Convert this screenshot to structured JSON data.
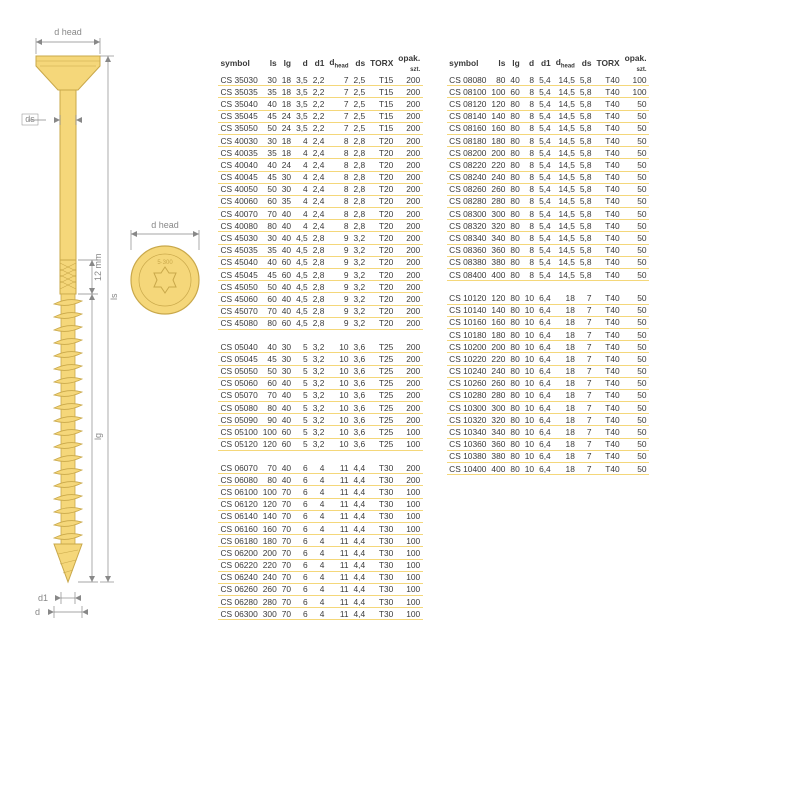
{
  "colors": {
    "screw_fill": "#f5d77a",
    "screw_stroke": "#c9a84a",
    "dim_line": "#888888",
    "dim_text": "#666666",
    "row_line": "#f4d77a",
    "text": "#3a3a3a"
  },
  "headers": [
    "symbol",
    "ls",
    "lg",
    "d",
    "d1",
    "d_head",
    "ds",
    "TORX",
    "opak_szt"
  ],
  "header_labels": {
    "symbol": "symbol",
    "ls": "ls",
    "lg": "lg",
    "d": "d",
    "d1": "d1",
    "d_head": "d head",
    "ds": "ds",
    "TORX": "TORX",
    "opak_szt": "opak. szt."
  },
  "diagram_labels": {
    "d_head": "d head",
    "ds": "ds",
    "d1": "d1",
    "d": "d",
    "ls": "ls",
    "lg": "lg",
    "twelve_mm": "12 mm",
    "head_text": "5·300"
  },
  "blocks": [
    [
      [
        "CS 35030",
        30,
        18,
        "3,5",
        "2,2",
        7,
        "2,5",
        "T15",
        200
      ],
      [
        "CS 35035",
        35,
        18,
        "3,5",
        "2,2",
        7,
        "2,5",
        "T15",
        200
      ],
      [
        "CS 35040",
        40,
        18,
        "3,5",
        "2,2",
        7,
        "2,5",
        "T15",
        200
      ],
      [
        "CS 35045",
        45,
        24,
        "3,5",
        "2,2",
        7,
        "2,5",
        "T15",
        200
      ],
      [
        "CS 35050",
        50,
        24,
        "3,5",
        "2,2",
        7,
        "2,5",
        "T15",
        200
      ],
      [
        "CS 40030",
        30,
        18,
        "4",
        "2,4",
        8,
        "2,8",
        "T20",
        200
      ],
      [
        "CS 40035",
        35,
        18,
        "4",
        "2,4",
        8,
        "2,8",
        "T20",
        200
      ],
      [
        "CS 40040",
        40,
        24,
        "4",
        "2,4",
        8,
        "2,8",
        "T20",
        200
      ],
      [
        "CS 40045",
        45,
        30,
        "4",
        "2,4",
        8,
        "2,8",
        "T20",
        200
      ],
      [
        "CS 40050",
        50,
        30,
        "4",
        "2,4",
        8,
        "2,8",
        "T20",
        200
      ],
      [
        "CS 40060",
        60,
        35,
        "4",
        "2,4",
        8,
        "2,8",
        "T20",
        200
      ],
      [
        "CS 40070",
        70,
        40,
        "4",
        "2,4",
        8,
        "2,8",
        "T20",
        200
      ],
      [
        "CS 40080",
        80,
        40,
        "4",
        "2,4",
        8,
        "2,8",
        "T20",
        200
      ],
      [
        "CS 45030",
        30,
        40,
        "4,5",
        "2,8",
        9,
        "3,2",
        "T20",
        200
      ],
      [
        "CS 45035",
        35,
        40,
        "4,5",
        "2,8",
        9,
        "3,2",
        "T20",
        200
      ],
      [
        "CS 45040",
        40,
        60,
        "4,5",
        "2,8",
        9,
        "3,2",
        "T20",
        200
      ],
      [
        "CS 45045",
        45,
        60,
        "4,5",
        "2,8",
        9,
        "3,2",
        "T20",
        200
      ],
      [
        "CS 45050",
        50,
        40,
        "4,5",
        "2,8",
        9,
        "3,2",
        "T20",
        200
      ],
      [
        "CS 45060",
        60,
        40,
        "4,5",
        "2,8",
        9,
        "3,2",
        "T20",
        200
      ],
      [
        "CS 45070",
        70,
        40,
        "4,5",
        "2,8",
        9,
        "3,2",
        "T20",
        200
      ],
      [
        "CS 45080",
        80,
        60,
        "4,5",
        "2,8",
        9,
        "3,2",
        "T20",
        200
      ]
    ],
    [
      [
        "CS 05040",
        40,
        30,
        "5",
        "3,2",
        10,
        "3,6",
        "T25",
        200
      ],
      [
        "CS 05045",
        45,
        30,
        "5",
        "3,2",
        10,
        "3,6",
        "T25",
        200
      ],
      [
        "CS 05050",
        50,
        30,
        "5",
        "3,2",
        10,
        "3,6",
        "T25",
        200
      ],
      [
        "CS 05060",
        60,
        40,
        "5",
        "3,2",
        10,
        "3,6",
        "T25",
        200
      ],
      [
        "CS 05070",
        70,
        40,
        "5",
        "3,2",
        10,
        "3,6",
        "T25",
        200
      ],
      [
        "CS 05080",
        80,
        40,
        "5",
        "3,2",
        10,
        "3,6",
        "T25",
        200
      ],
      [
        "CS 05090",
        90,
        40,
        "5",
        "3,2",
        10,
        "3,6",
        "T25",
        200
      ],
      [
        "CS 05100",
        100,
        60,
        "5",
        "3,2",
        10,
        "3,6",
        "T25",
        100
      ],
      [
        "CS 05120",
        120,
        60,
        "5",
        "3,2",
        10,
        "3,6",
        "T25",
        100
      ]
    ],
    [
      [
        "CS 06070",
        70,
        40,
        "6",
        "4",
        11,
        "4,4",
        "T30",
        200
      ],
      [
        "CS 06080",
        80,
        40,
        "6",
        "4",
        11,
        "4,4",
        "T30",
        200
      ],
      [
        "CS 06100",
        100,
        70,
        "6",
        "4",
        11,
        "4,4",
        "T30",
        100
      ],
      [
        "CS 06120",
        120,
        70,
        "6",
        "4",
        11,
        "4,4",
        "T30",
        100
      ],
      [
        "CS 06140",
        140,
        70,
        "6",
        "4",
        11,
        "4,4",
        "T30",
        100
      ],
      [
        "CS 06160",
        160,
        70,
        "6",
        "4",
        11,
        "4,4",
        "T30",
        100
      ],
      [
        "CS 06180",
        180,
        70,
        "6",
        "4",
        11,
        "4,4",
        "T30",
        100
      ],
      [
        "CS 06200",
        200,
        70,
        "6",
        "4",
        11,
        "4,4",
        "T30",
        100
      ],
      [
        "CS 06220",
        220,
        70,
        "6",
        "4",
        11,
        "4,4",
        "T30",
        100
      ],
      [
        "CS 06240",
        240,
        70,
        "6",
        "4",
        11,
        "4,4",
        "T30",
        100
      ],
      [
        "CS 06260",
        260,
        70,
        "6",
        "4",
        11,
        "4,4",
        "T30",
        100
      ],
      [
        "CS 06280",
        280,
        70,
        "6",
        "4",
        11,
        "4,4",
        "T30",
        100
      ],
      [
        "CS 06300",
        300,
        70,
        "6",
        "4",
        11,
        "4,4",
        "T30",
        100
      ]
    ],
    [
      [
        "CS 08080",
        80,
        40,
        "8",
        "5,4",
        "14,5",
        "5,8",
        "T40",
        100
      ],
      [
        "CS 08100",
        100,
        60,
        "8",
        "5,4",
        "14,5",
        "5,8",
        "T40",
        100
      ],
      [
        "CS 08120",
        120,
        80,
        "8",
        "5,4",
        "14,5",
        "5,8",
        "T40",
        50
      ],
      [
        "CS 08140",
        140,
        80,
        "8",
        "5,4",
        "14,5",
        "5,8",
        "T40",
        50
      ],
      [
        "CS 08160",
        160,
        80,
        "8",
        "5,4",
        "14,5",
        "5,8",
        "T40",
        50
      ],
      [
        "CS 08180",
        180,
        80,
        "8",
        "5,4",
        "14,5",
        "5,8",
        "T40",
        50
      ],
      [
        "CS 08200",
        200,
        80,
        "8",
        "5,4",
        "14,5",
        "5,8",
        "T40",
        50
      ],
      [
        "CS 08220",
        220,
        80,
        "8",
        "5,4",
        "14,5",
        "5,8",
        "T40",
        50
      ],
      [
        "CS 08240",
        240,
        80,
        "8",
        "5,4",
        "14,5",
        "5,8",
        "T40",
        50
      ],
      [
        "CS 08260",
        260,
        80,
        "8",
        "5,4",
        "14,5",
        "5,8",
        "T40",
        50
      ],
      [
        "CS 08280",
        280,
        80,
        "8",
        "5,4",
        "14,5",
        "5,8",
        "T40",
        50
      ],
      [
        "CS 08300",
        300,
        80,
        "8",
        "5,4",
        "14,5",
        "5,8",
        "T40",
        50
      ],
      [
        "CS 08320",
        320,
        80,
        "8",
        "5,4",
        "14,5",
        "5,8",
        "T40",
        50
      ],
      [
        "CS 08340",
        340,
        80,
        "8",
        "5,4",
        "14,5",
        "5,8",
        "T40",
        50
      ],
      [
        "CS 08360",
        360,
        80,
        "8",
        "5,4",
        "14,5",
        "5,8",
        "T40",
        50
      ],
      [
        "CS 08380",
        380,
        80,
        "8",
        "5,4",
        "14,5",
        "5,8",
        "T40",
        50
      ],
      [
        "CS 08400",
        400,
        80,
        "8",
        "5,4",
        "14,5",
        "5,8",
        "T40",
        50
      ]
    ],
    [
      [
        "CS 10120",
        120,
        80,
        "10",
        "6,4",
        18,
        7,
        "T40",
        50
      ],
      [
        "CS 10140",
        140,
        80,
        "10",
        "6,4",
        18,
        7,
        "T40",
        50
      ],
      [
        "CS 10160",
        160,
        80,
        "10",
        "6,4",
        18,
        7,
        "T40",
        50
      ],
      [
        "CS 10180",
        180,
        80,
        "10",
        "6,4",
        18,
        7,
        "T40",
        50
      ],
      [
        "CS 10200",
        200,
        80,
        "10",
        "6,4",
        18,
        7,
        "T40",
        50
      ],
      [
        "CS 10220",
        220,
        80,
        "10",
        "6,4",
        18,
        7,
        "T40",
        50
      ],
      [
        "CS 10240",
        240,
        80,
        "10",
        "6,4",
        18,
        7,
        "T40",
        50
      ],
      [
        "CS 10260",
        260,
        80,
        "10",
        "6,4",
        18,
        7,
        "T40",
        50
      ],
      [
        "CS 10280",
        280,
        80,
        "10",
        "6,4",
        18,
        7,
        "T40",
        50
      ],
      [
        "CS 10300",
        300,
        80,
        "10",
        "6,4",
        18,
        7,
        "T40",
        50
      ],
      [
        "CS 10320",
        320,
        80,
        "10",
        "6,4",
        18,
        7,
        "T40",
        50
      ],
      [
        "CS 10340",
        340,
        80,
        "10",
        "6,4",
        18,
        7,
        "T40",
        50
      ],
      [
        "CS 10360",
        360,
        80,
        "10",
        "6,4",
        18,
        7,
        "T40",
        50
      ],
      [
        "CS 10380",
        380,
        80,
        "10",
        "6,4",
        18,
        7,
        "T40",
        50
      ],
      [
        "CS 10400",
        400,
        80,
        "10",
        "6,4",
        18,
        7,
        "T40",
        50
      ]
    ]
  ],
  "col_layout": [
    [
      0,
      1,
      2
    ],
    [
      3,
      4
    ]
  ]
}
